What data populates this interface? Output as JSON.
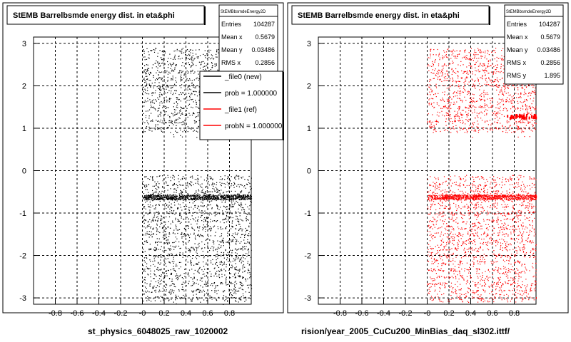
{
  "panels": [
    {
      "title": "StEMB Barrelbsmde energy dist. in eta&phi",
      "stats": {
        "name": "StEMBbsmdeEnergy2D",
        "rows": [
          {
            "label": "Entries",
            "value": "104287"
          },
          {
            "label": "Mean x",
            "value": "0.5679"
          },
          {
            "label": "Mean y",
            "value": "0.03486"
          },
          {
            "label": "RMS x",
            "value": "0.2856"
          }
        ]
      },
      "legend": [
        {
          "label": "_file0 (new)",
          "color": "#ffffff"
        },
        {
          "label": "prob = 1.000000",
          "color": "#000000"
        },
        {
          "label": "_file1 (ref)",
          "color": "#ff0000"
        },
        {
          "label": "probN = 1.000000",
          "color": "#ff0000"
        }
      ],
      "bottom_label": "st_physics_6048025_raw_1020002",
      "marker_color": "#000000"
    },
    {
      "title": "StEMB Barrelbsmde energy dist. in eta&phi",
      "stats": {
        "name": "StEMBbsmdeEnergy2D",
        "rows": [
          {
            "label": "Entries",
            "value": "104287"
          },
          {
            "label": "Mean x",
            "value": "0.5679"
          },
          {
            "label": "Mean y",
            "value": "0.03486"
          },
          {
            "label": "RMS x",
            "value": "0.2856"
          },
          {
            "label": "RMS y",
            "value": "1.895"
          }
        ]
      },
      "bottom_label": "rision/year_2005_CuCu200_MinBias_daq_sl302.ittf/",
      "marker_color": "#ff0000"
    }
  ],
  "chart_data": [
    {
      "type": "scatter",
      "title": "StEMB Barrelbsmde energy dist. in eta&phi",
      "xlim": [
        -1,
        1
      ],
      "ylim": [
        -3.15,
        3.15
      ],
      "x_ticks": [
        -0.8,
        -0.6,
        -0.4,
        -0.2,
        0,
        0.2,
        0.4,
        0.6,
        0.8
      ],
      "x_tick_labels": [
        "-0.8",
        "-0.6",
        "-0.4",
        "-0.2",
        "-0",
        "0.2",
        "0.4",
        "0.6",
        "0.8"
      ],
      "y_ticks": [
        -3,
        -2,
        -1,
        0,
        1,
        2,
        3
      ],
      "y_tick_labels": [
        "-3",
        "-2",
        "-1",
        "0",
        "1",
        "2",
        "3"
      ],
      "grid": true,
      "occupied_regions": [
        {
          "x": [
            0,
            1
          ],
          "y": [
            0.9,
            2.9
          ]
        },
        {
          "x": [
            0,
            1
          ],
          "y": [
            -3.1,
            -0.1
          ]
        }
      ],
      "dense_band_y": -0.62,
      "series": [
        {
          "color": "#000000"
        }
      ]
    },
    {
      "type": "scatter",
      "title": "StEMB Barrelbsmde energy dist. in eta&phi",
      "xlim": [
        -1,
        1
      ],
      "ylim": [
        -3.15,
        3.15
      ],
      "x_ticks": [
        -0.8,
        -0.6,
        -0.4,
        -0.2,
        0,
        0.2,
        0.4,
        0.6,
        0.8
      ],
      "x_tick_labels": [
        "-0.8",
        "-0.6",
        "-0.4",
        "-0.2",
        "-0",
        "0.2",
        "0.4",
        "0.6",
        "0.8"
      ],
      "y_ticks": [
        -3,
        -2,
        -1,
        0,
        1,
        2,
        3
      ],
      "y_tick_labels": [
        "-3",
        "-2",
        "-1",
        "0",
        "1",
        "2",
        "3"
      ],
      "grid": true,
      "occupied_regions": [
        {
          "x": [
            0,
            1
          ],
          "y": [
            0.9,
            2.9
          ]
        },
        {
          "x": [
            0,
            1
          ],
          "y": [
            -3.1,
            -0.1
          ]
        }
      ],
      "dense_band_y": -0.62,
      "series": [
        {
          "color": "#ff0000"
        }
      ]
    }
  ]
}
